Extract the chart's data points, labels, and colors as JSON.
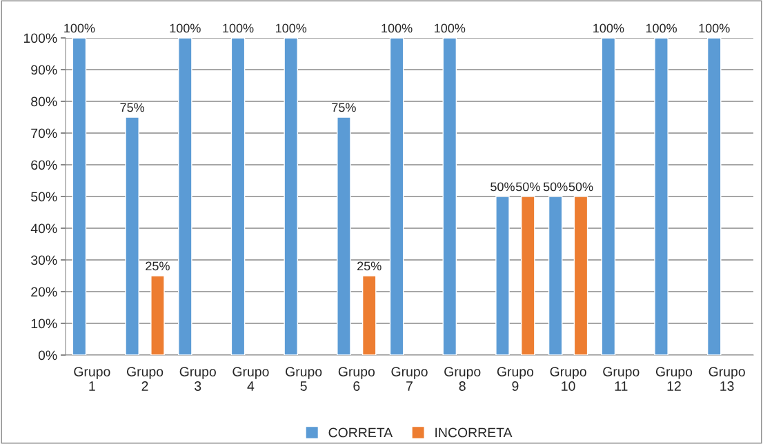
{
  "chart_data": {
    "type": "bar",
    "categories": [
      "Grupo\n1",
      "Grupo\n2",
      "Grupo\n3",
      "Grupo\n4",
      "Grupo\n5",
      "Grupo\n6",
      "Grupo\n7",
      "Grupo\n8",
      "Grupo\n9",
      "Grupo\n10",
      "Grupo\n11",
      "Grupo\n12",
      "Grupo\n13"
    ],
    "series": [
      {
        "name": "CORRETA",
        "color": "#5b9bd5",
        "values": [
          100,
          75,
          100,
          100,
          100,
          75,
          100,
          100,
          50,
          50,
          100,
          100,
          100
        ],
        "value_labels": [
          "100%",
          "75%",
          "100%",
          "100%",
          "100%",
          "75%",
          "100%",
          "100%",
          "50%",
          "50%",
          "100%",
          "100%",
          "100%"
        ]
      },
      {
        "name": "INCORRETA",
        "color": "#ed7d31",
        "values": [
          null,
          25,
          null,
          null,
          null,
          25,
          null,
          null,
          50,
          50,
          null,
          null,
          null
        ],
        "value_labels": [
          null,
          "25%",
          null,
          null,
          null,
          "25%",
          null,
          null,
          "50%",
          "50%",
          null,
          null,
          null
        ]
      }
    ],
    "ylim": [
      0,
      100
    ],
    "yticks": [
      {
        "value": 0,
        "label": "0%"
      },
      {
        "value": 10,
        "label": "10%"
      },
      {
        "value": 20,
        "label": "20%"
      },
      {
        "value": 30,
        "label": "30%"
      },
      {
        "value": 40,
        "label": "40%"
      },
      {
        "value": 50,
        "label": "50%"
      },
      {
        "value": 60,
        "label": "60%"
      },
      {
        "value": 70,
        "label": "70%"
      },
      {
        "value": 80,
        "label": "80%"
      },
      {
        "value": 90,
        "label": "90%"
      },
      {
        "value": 100,
        "label": "100%"
      }
    ],
    "grid": "y",
    "legend": "bottom"
  }
}
